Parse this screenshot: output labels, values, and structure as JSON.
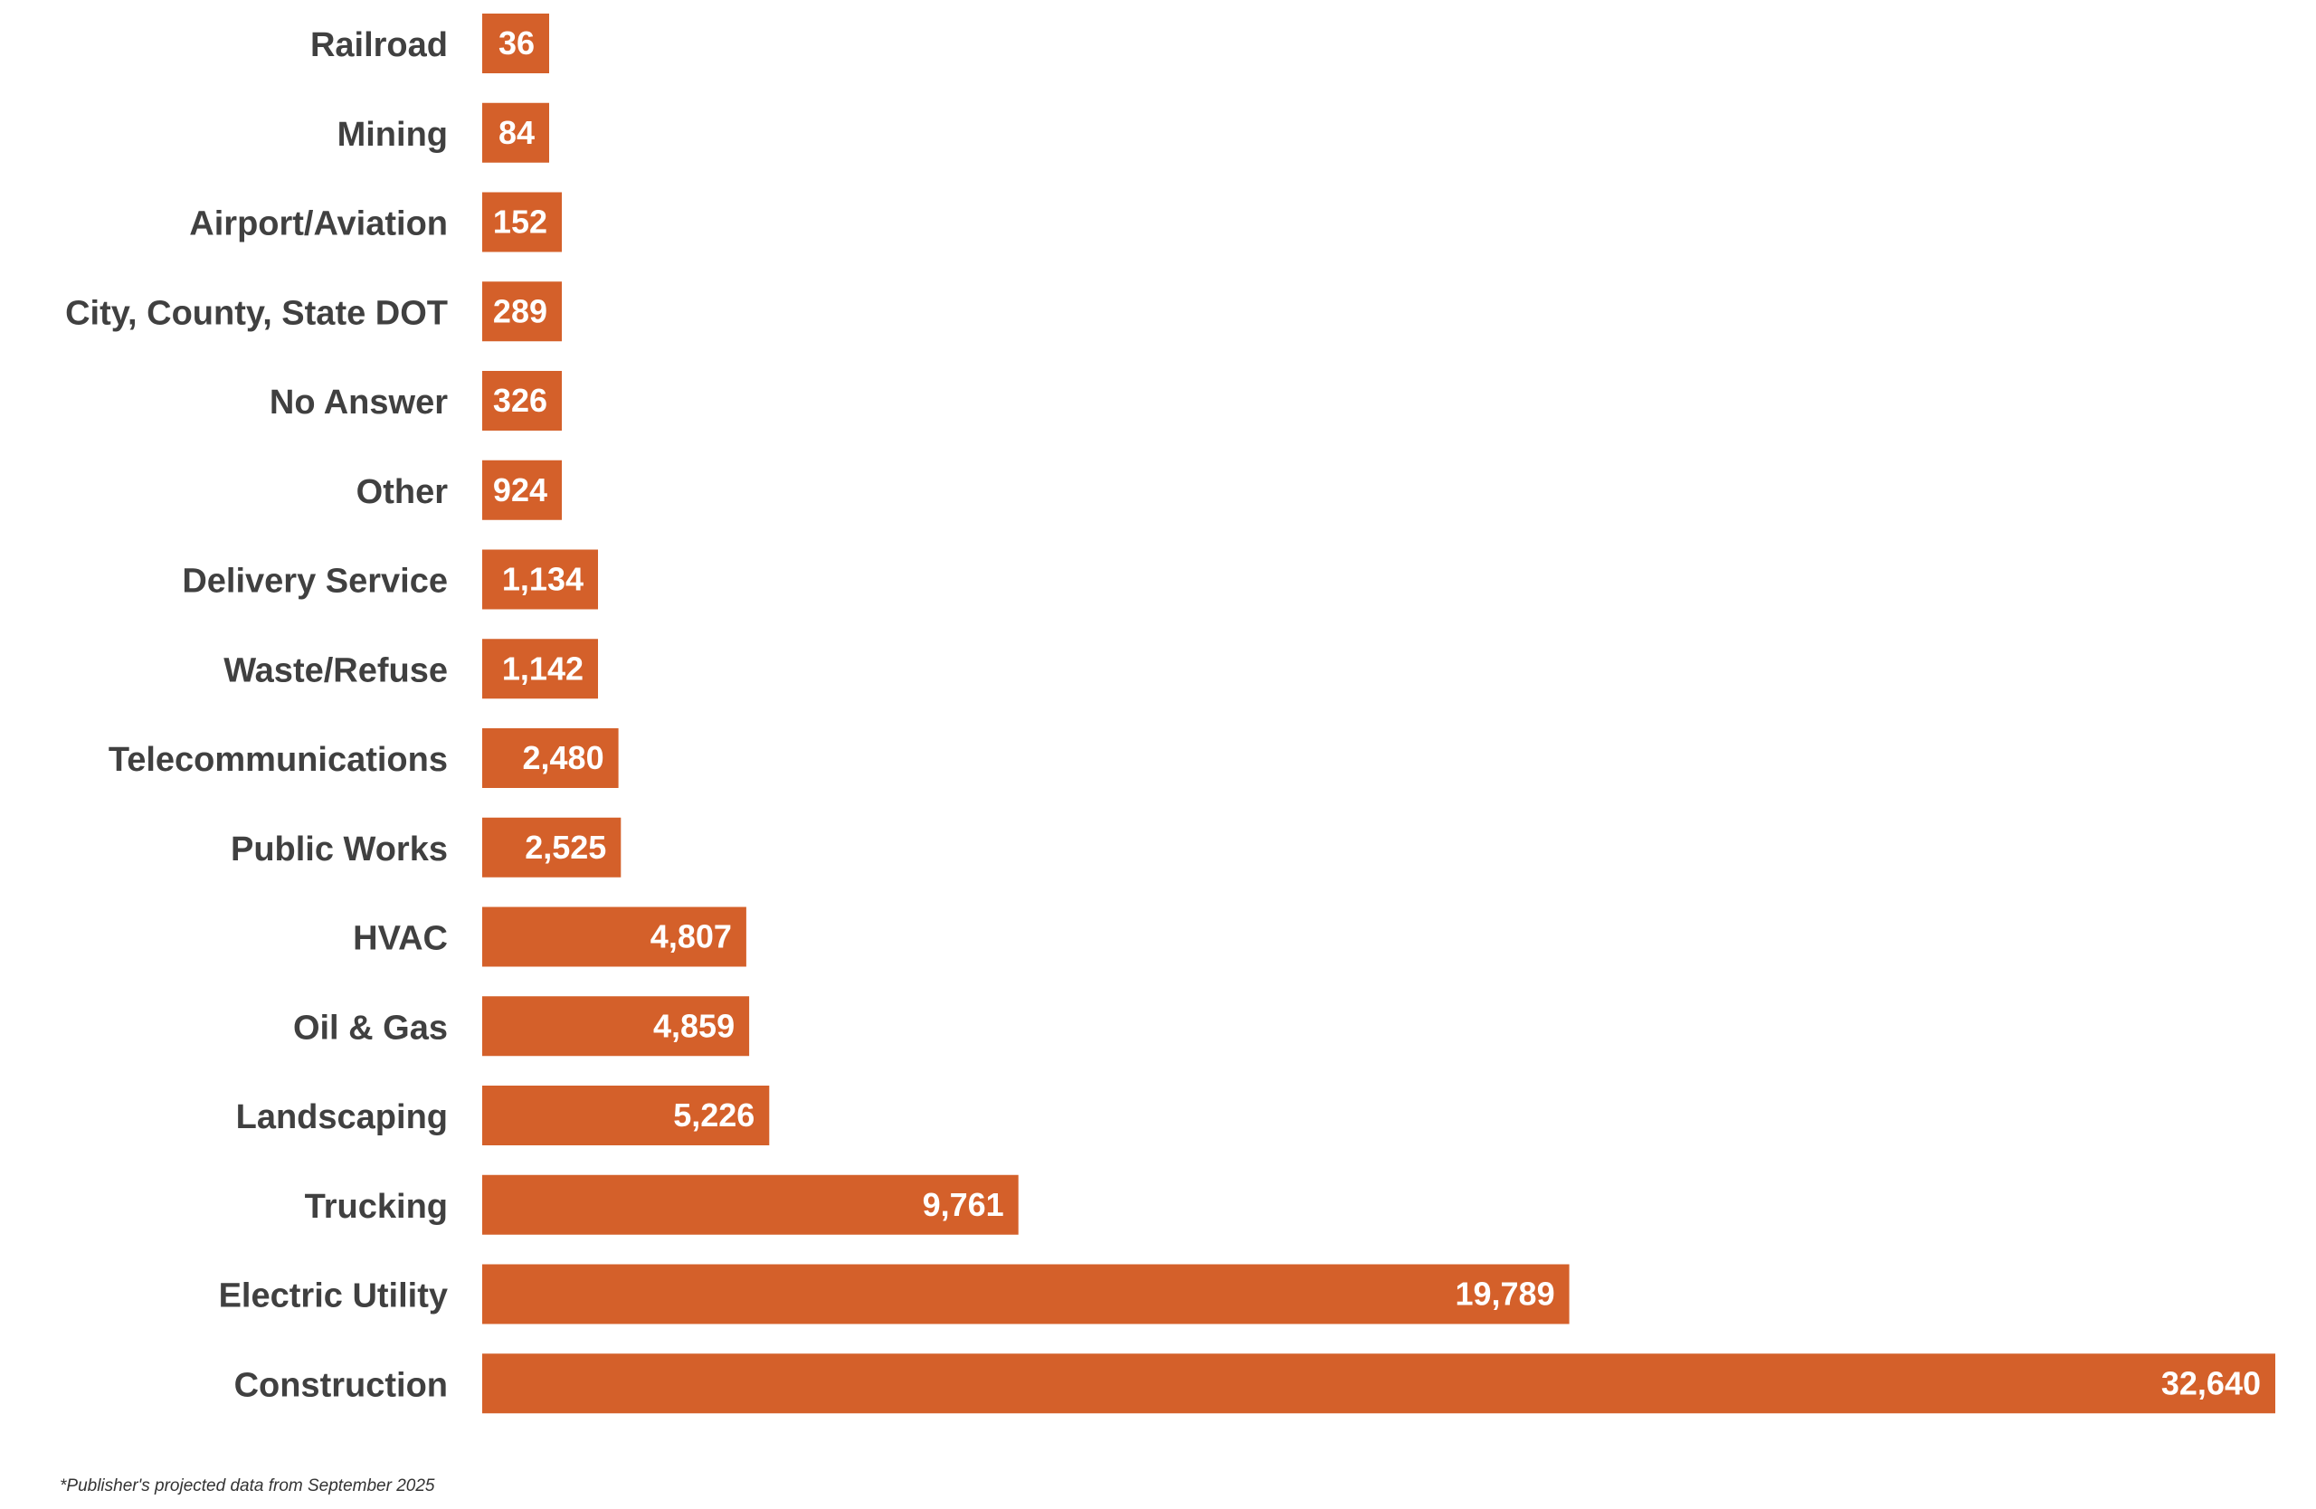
{
  "chart_data": {
    "type": "bar",
    "orientation": "horizontal",
    "categories": [
      "Railroad",
      "Mining",
      "Airport/Aviation",
      "City, County, State DOT",
      "No Answer",
      "Other",
      "Delivery Service",
      "Waste/Refuse",
      "Telecommunications",
      "Public Works",
      "HVAC",
      "Oil & Gas",
      "Landscaping",
      "Trucking",
      "Electric Utility",
      "Construction"
    ],
    "values": [
      36,
      84,
      152,
      289,
      326,
      924,
      1134,
      1142,
      2480,
      2525,
      4807,
      4859,
      5226,
      9761,
      19789,
      32640
    ],
    "data_labels": [
      "36",
      "84",
      "152",
      "289",
      "326",
      "924",
      "1,134",
      "1,142",
      "2,480",
      "2,525",
      "4,807",
      "4,859",
      "5,226",
      "9,761",
      "19,789",
      "32,640"
    ],
    "title": "",
    "xlabel": "",
    "ylabel": "",
    "xlim": [
      0,
      32640
    ],
    "grid": false,
    "legend": "none",
    "bar_color": "#D4602A"
  },
  "footnote": "*Publisher's projected data from September 2025"
}
